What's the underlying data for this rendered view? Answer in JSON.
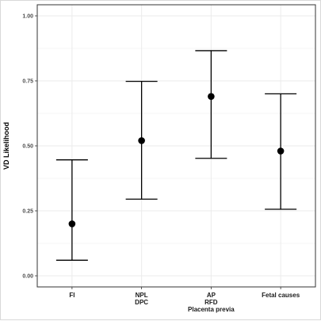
{
  "chart_data": {
    "type": "scatter",
    "subtype": "point-with-errorbars",
    "title": "",
    "xlabel": "",
    "ylabel": "VD Likelihood",
    "ylim": [
      0,
      1
    ],
    "yticks": [
      "0.00",
      "0.25",
      "0.50",
      "0.75",
      "1.00"
    ],
    "grid": true,
    "legend": "none",
    "categories": [
      {
        "lines": [
          "FI"
        ]
      },
      {
        "lines": [
          "NPL",
          "DPC"
        ]
      },
      {
        "lines": [
          "AP",
          "RFD",
          "Placenta previa"
        ]
      },
      {
        "lines": [
          "Fetal causes"
        ]
      }
    ],
    "values": [
      0.2,
      0.52,
      0.69,
      0.48
    ],
    "lower": [
      0.06,
      0.295,
      0.452,
      0.256
    ],
    "upper": [
      0.446,
      0.748,
      0.866,
      0.7
    ],
    "colors": {
      "point": "#000000",
      "errorbar": "#000000",
      "grid": "#ebebeb",
      "panel_border": "#333333"
    }
  }
}
